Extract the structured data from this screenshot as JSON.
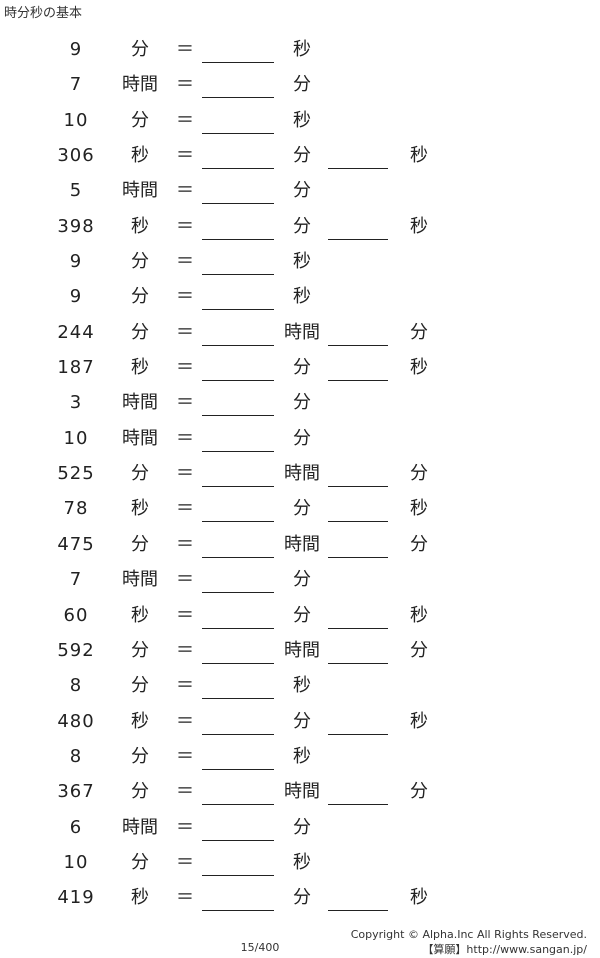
{
  "title": "時分秒の基本",
  "equals": "＝",
  "rows": [
    {
      "num": "9",
      "u1": "分",
      "u2": "秒",
      "u3": ""
    },
    {
      "num": "7",
      "u1": "時間",
      "u2": "分",
      "u3": ""
    },
    {
      "num": "10",
      "u1": "分",
      "u2": "秒",
      "u3": ""
    },
    {
      "num": "306",
      "u1": "秒",
      "u2": "分",
      "u3": "秒"
    },
    {
      "num": "5",
      "u1": "時間",
      "u2": "分",
      "u3": ""
    },
    {
      "num": "398",
      "u1": "秒",
      "u2": "分",
      "u3": "秒"
    },
    {
      "num": "9",
      "u1": "分",
      "u2": "秒",
      "u3": ""
    },
    {
      "num": "9",
      "u1": "分",
      "u2": "秒",
      "u3": ""
    },
    {
      "num": "244",
      "u1": "分",
      "u2": "時間",
      "u3": "分"
    },
    {
      "num": "187",
      "u1": "秒",
      "u2": "分",
      "u3": "秒"
    },
    {
      "num": "3",
      "u1": "時間",
      "u2": "分",
      "u3": ""
    },
    {
      "num": "10",
      "u1": "時間",
      "u2": "分",
      "u3": ""
    },
    {
      "num": "525",
      "u1": "分",
      "u2": "時間",
      "u3": "分"
    },
    {
      "num": "78",
      "u1": "秒",
      "u2": "分",
      "u3": "秒"
    },
    {
      "num": "475",
      "u1": "分",
      "u2": "時間",
      "u3": "分"
    },
    {
      "num": "7",
      "u1": "時間",
      "u2": "分",
      "u3": ""
    },
    {
      "num": "60",
      "u1": "秒",
      "u2": "分",
      "u3": "秒"
    },
    {
      "num": "592",
      "u1": "分",
      "u2": "時間",
      "u3": "分"
    },
    {
      "num": "8",
      "u1": "分",
      "u2": "秒",
      "u3": ""
    },
    {
      "num": "480",
      "u1": "秒",
      "u2": "分",
      "u3": "秒"
    },
    {
      "num": "8",
      "u1": "分",
      "u2": "秒",
      "u3": ""
    },
    {
      "num": "367",
      "u1": "分",
      "u2": "時間",
      "u3": "分"
    },
    {
      "num": "6",
      "u1": "時間",
      "u2": "分",
      "u3": ""
    },
    {
      "num": "10",
      "u1": "分",
      "u2": "秒",
      "u3": ""
    },
    {
      "num": "419",
      "u1": "秒",
      "u2": "分",
      "u3": "秒"
    }
  ],
  "footer": {
    "copyright": "Copyright © Alpha.Inc All Rights Reserved.",
    "site": "【算願】http://www.sangan.jp/",
    "page": "15/400"
  }
}
